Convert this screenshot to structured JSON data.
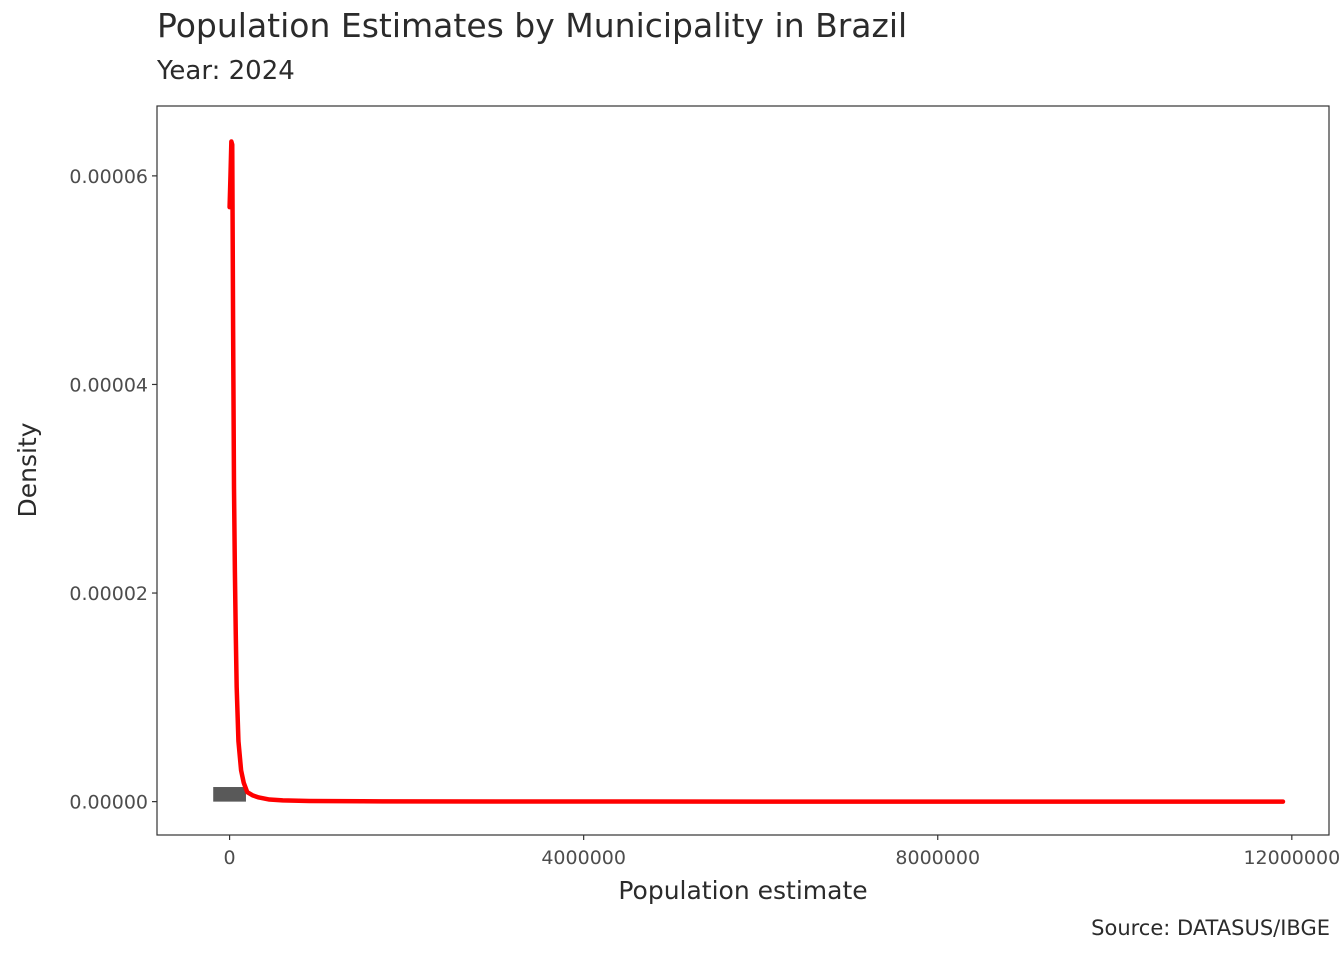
{
  "chart_data": {
    "type": "area",
    "title": "Population Estimates by Municipality in Brazil",
    "subtitle": "Year: 2024",
    "caption": "Source: DATASUS/IBGE",
    "xlabel": "Population estimate",
    "ylabel": "Density",
    "xlim": [
      -820000,
      12420000
    ],
    "ylim": [
      -3.2e-06,
      6.67e-05
    ],
    "x_ticks": [
      0,
      4000000,
      8000000,
      12000000
    ],
    "x_tick_labels": [
      "0",
      "4000000",
      "8000000",
      "12000000"
    ],
    "y_ticks": [
      0,
      2e-05,
      4e-05,
      6e-05
    ],
    "y_tick_labels": [
      "0.00000",
      "0.00002",
      "0.00004",
      "0.00006"
    ],
    "grid": false,
    "histogram": {
      "color": "#595959",
      "bins": [
        {
          "x0": -185000,
          "x1": 185000,
          "density": 1.4e-06
        }
      ]
    },
    "density_curve": {
      "color": "#ff0000",
      "points": [
        [
          0,
          5.7e-05
        ],
        [
          10000,
          6e-05
        ],
        [
          20000,
          6.33e-05
        ],
        [
          30000,
          6.3e-05
        ],
        [
          40000,
          4.5e-05
        ],
        [
          50000,
          3e-05
        ],
        [
          60000,
          2.2e-05
        ],
        [
          70000,
          1.6e-05
        ],
        [
          80000,
          1.1e-05
        ],
        [
          100000,
          5.8e-06
        ],
        [
          130000,
          3e-06
        ],
        [
          160000,
          1.8e-06
        ],
        [
          200000,
          9e-07
        ],
        [
          260000,
          6e-07
        ],
        [
          330000,
          4e-07
        ],
        [
          450000,
          2e-07
        ],
        [
          600000,
          1.2e-07
        ],
        [
          900000,
          6e-08
        ],
        [
          1500000,
          3e-08
        ],
        [
          3000000,
          1e-08
        ],
        [
          6000000,
          5e-09
        ],
        [
          9000000,
          2e-09
        ],
        [
          11900000,
          1e-09
        ]
      ]
    }
  }
}
